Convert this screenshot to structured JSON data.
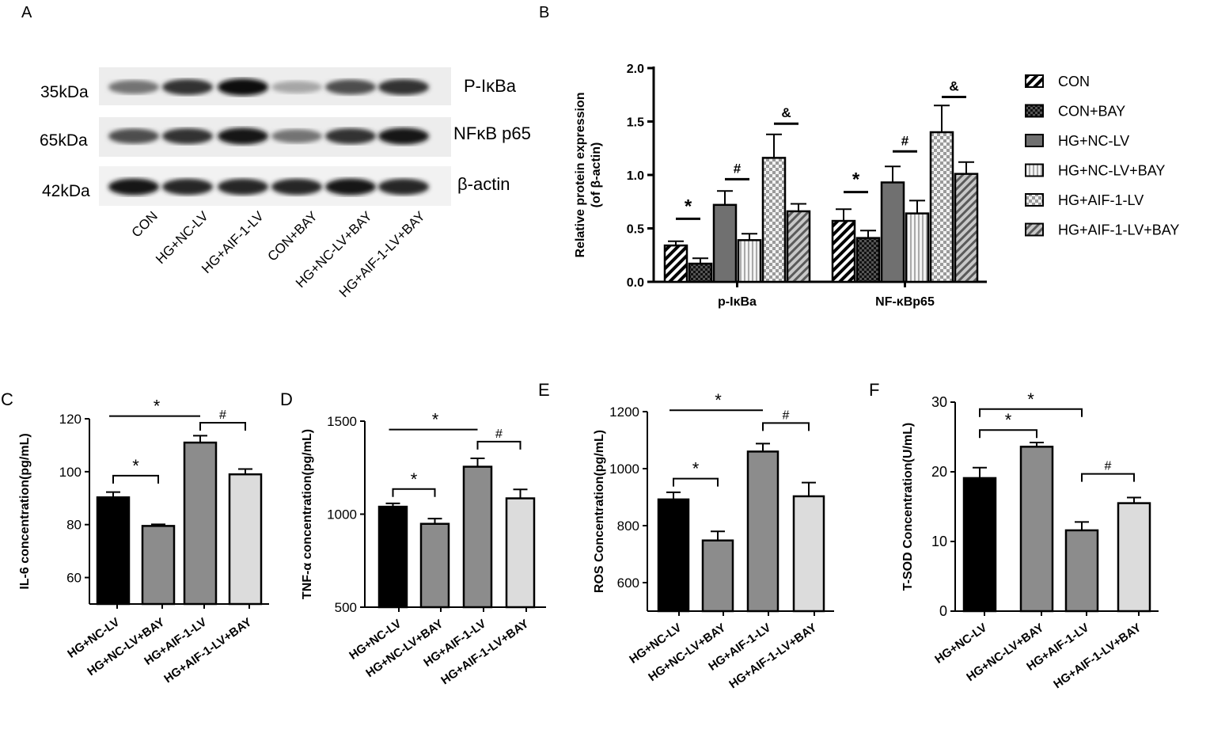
{
  "panels": {
    "A": "A",
    "B": "B",
    "C": "C",
    "D": "D",
    "E": "E",
    "F": "F"
  },
  "blot": {
    "left_labels": [
      "35kDa",
      "65kDa",
      "42kDa"
    ],
    "right_labels": [
      "P-IκBa",
      "NFκB p65",
      "β-actin"
    ],
    "lanes": [
      "CON",
      "HG+NC-LV",
      "HG+AIF-1-LV",
      "CON+BAY",
      "HG+NC-LV+BAY",
      "HG+AIF-1-LV+BAY"
    ],
    "band_intensity": [
      [
        0.55,
        0.8,
        0.95,
        0.35,
        0.7,
        0.8
      ],
      [
        0.7,
        0.8,
        0.9,
        0.55,
        0.8,
        0.9
      ],
      [
        0.9,
        0.85,
        0.85,
        0.85,
        0.9,
        0.85
      ]
    ]
  },
  "chart_data": [
    {
      "id": "B",
      "type": "bar",
      "ylabel": "Relative protein expression\n(of β-actin)",
      "ylim": [
        0,
        2.0
      ],
      "yticks": [
        "0.0",
        "0.5",
        "1.0",
        "1.5",
        "2.0"
      ],
      "categories": [
        "p-IκBa",
        "NF-κBp65"
      ],
      "legend_position": "right",
      "series": [
        {
          "name": "CON",
          "values": [
            0.34,
            0.57
          ],
          "errors": [
            0.04,
            0.11
          ],
          "pattern": "diag",
          "color": "#000000"
        },
        {
          "name": "CON+BAY",
          "values": [
            0.17,
            0.41
          ],
          "errors": [
            0.05,
            0.07
          ],
          "pattern": "check",
          "color": "#000000"
        },
        {
          "name": "HG+NC-LV",
          "values": [
            0.72,
            0.93
          ],
          "errors": [
            0.13,
            0.15
          ],
          "pattern": "solid",
          "color": "#707070"
        },
        {
          "name": "HG+NC-LV+BAY",
          "values": [
            0.39,
            0.64
          ],
          "errors": [
            0.06,
            0.12
          ],
          "pattern": "vlines",
          "color": "#dddddd"
        },
        {
          "name": "HG+AIF-1-LV",
          "values": [
            1.16,
            1.4
          ],
          "errors": [
            0.22,
            0.25
          ],
          "pattern": "checklight",
          "color": "#aaaaaa"
        },
        {
          "name": "HG+AIF-1-LV+BAY",
          "values": [
            0.66,
            1.01
          ],
          "errors": [
            0.07,
            0.11
          ],
          "pattern": "diaggray",
          "color": "#777777"
        }
      ],
      "annotations": [
        {
          "text": "*",
          "category": 0,
          "from": 0,
          "to": 1,
          "y": 0.59
        },
        {
          "text": "#",
          "category": 0,
          "from": 2,
          "to": 3,
          "y": 0.96
        },
        {
          "text": "&",
          "category": 0,
          "from": 4,
          "to": 5,
          "y": 1.48
        },
        {
          "text": "*",
          "category": 1,
          "from": 0,
          "to": 1,
          "y": 0.84
        },
        {
          "text": "#",
          "category": 1,
          "from": 2,
          "to": 3,
          "y": 1.22
        },
        {
          "text": "&",
          "category": 1,
          "from": 4,
          "to": 5,
          "y": 1.73
        }
      ]
    },
    {
      "id": "C",
      "type": "bar",
      "ylabel": "IL-6 concentration(pg/mL)",
      "ylim": [
        50,
        120
      ],
      "yticks": [
        "60",
        "80",
        "100",
        "120"
      ],
      "categories": [
        "HG+NC-LV",
        "HG+NC-LV+BAY",
        "HG+AIF-1-LV",
        "HG+AIF-1-LV+BAY"
      ],
      "values": [
        90.3,
        79.5,
        111.0,
        99.0
      ],
      "errors": [
        2.0,
        0.6,
        2.6,
        2.0
      ],
      "colors": [
        "#000000",
        "#8c8c8c",
        "#8c8c8c",
        "#dcdcdc"
      ],
      "annotations": [
        {
          "text": "*",
          "from": 0,
          "to": 1,
          "y": 98.5
        },
        {
          "text": "*",
          "from": 0,
          "to": 2,
          "y": 121.0,
          "style": "line"
        },
        {
          "text": "#",
          "from": 2,
          "to": 3,
          "y": 118.5
        }
      ]
    },
    {
      "id": "D",
      "type": "bar",
      "ylabel": "TNF-α concentration(pg/mL)",
      "ylim": [
        500,
        1500
      ],
      "yticks": [
        "500",
        "1000",
        "1500"
      ],
      "categories": [
        "HG+NC-LV",
        "HG+NC-LV+BAY",
        "HG+AIF-1-LV",
        "HG+AIF-1-LV+BAY"
      ],
      "values": [
        1040,
        948,
        1255,
        1085
      ],
      "errors": [
        18,
        28,
        45,
        48
      ],
      "colors": [
        "#000000",
        "#8c8c8c",
        "#8c8c8c",
        "#dcdcdc"
      ],
      "annotations": [
        {
          "text": "*",
          "from": 0,
          "to": 1,
          "y": 1135
        },
        {
          "text": "*",
          "from": 0,
          "to": 2,
          "y": 1455,
          "style": "line"
        },
        {
          "text": "#",
          "from": 2,
          "to": 3,
          "y": 1390
        }
      ]
    },
    {
      "id": "E",
      "type": "bar",
      "ylabel": "ROS Concentration(pg/mL)",
      "ylim": [
        500,
        1200
      ],
      "yticks": [
        "600",
        "800",
        "1000",
        "1200"
      ],
      "categories": [
        "HG+NC-LV",
        "HG+NC-LV+BAY",
        "HG+AIF-1-LV",
        "HG+AIF-1-LV+BAY"
      ],
      "values": [
        892,
        748,
        1060,
        903
      ],
      "errors": [
        25,
        32,
        28,
        48
      ],
      "colors": [
        "#000000",
        "#8c8c8c",
        "#8c8c8c",
        "#dcdcdc"
      ],
      "annotations": [
        {
          "text": "*",
          "from": 0,
          "to": 1,
          "y": 965
        },
        {
          "text": "*",
          "from": 0,
          "to": 2,
          "y": 1205,
          "style": "line"
        },
        {
          "text": "#",
          "from": 2,
          "to": 3,
          "y": 1160
        }
      ]
    },
    {
      "id": "F",
      "type": "bar",
      "ylabel": "T-SOD Concentration(U/mL)",
      "ylim": [
        0,
        30
      ],
      "yticks": [
        "0",
        "10",
        "20",
        "30"
      ],
      "categories": [
        "HG+NC-LV",
        "HG+NC-LV+BAY",
        "HG+AIF-1-LV",
        "HG+AIF-1-LV+BAY"
      ],
      "values": [
        19.1,
        23.6,
        11.6,
        15.5
      ],
      "errors": [
        1.5,
        0.6,
        1.2,
        0.8
      ],
      "colors": [
        "#000000",
        "#8c8c8c",
        "#8c8c8c",
        "#dcdcdc"
      ],
      "annotations": [
        {
          "text": "*",
          "from": 0,
          "to": 1,
          "y": 26.0
        },
        {
          "text": "*",
          "from": 0,
          "to": 2,
          "y": 29.0
        },
        {
          "text": "#",
          "from": 2,
          "to": 3,
          "y": 19.7
        }
      ]
    }
  ]
}
